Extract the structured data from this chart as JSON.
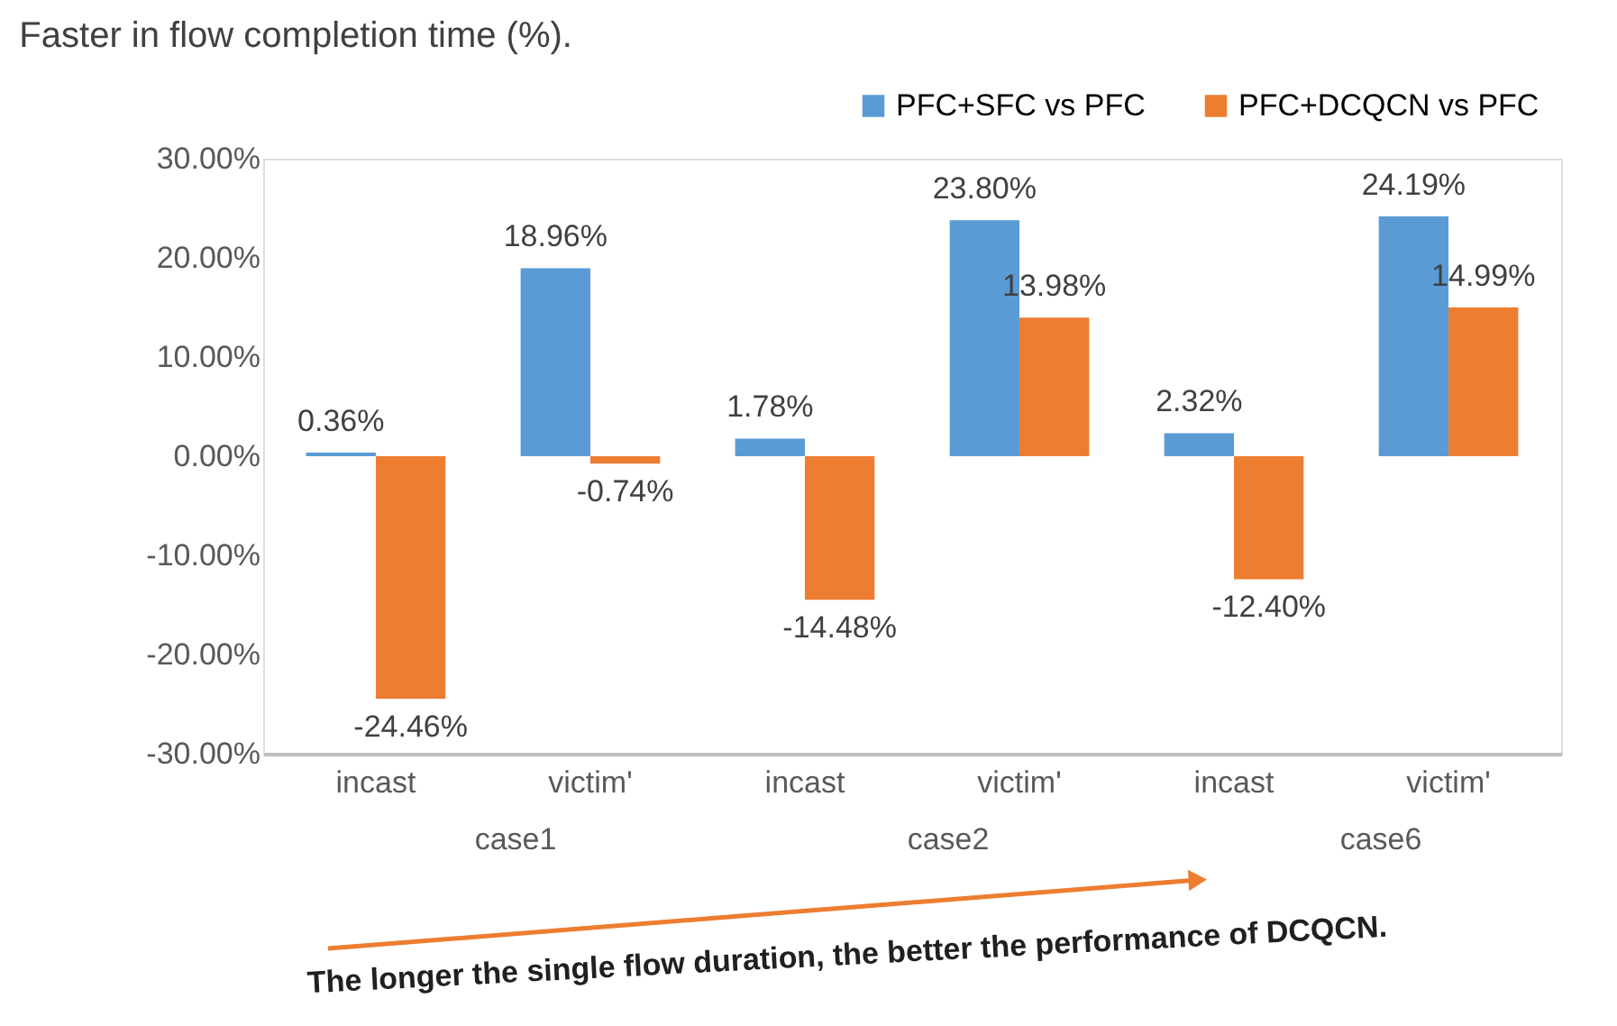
{
  "chart_data": {
    "type": "bar",
    "title": "Faster in flow completion time (%).",
    "categories": [
      "incast",
      "victim'",
      "incast",
      "victim'",
      "incast",
      "victim'"
    ],
    "series": [
      {
        "name": "PFC+SFC vs PFC",
        "color": "#5b9bd5",
        "values": [
          0.36,
          18.96,
          1.78,
          23.8,
          2.32,
          24.19
        ],
        "value_labels": [
          "0.36%",
          "18.96%",
          "1.78%",
          "23.80%",
          "2.32%",
          "24.19%"
        ]
      },
      {
        "name": "PFC+DCQCN vs PFC",
        "color": "#ed7d31",
        "values": [
          -24.46,
          -0.74,
          -14.48,
          13.98,
          -12.4,
          14.99
        ],
        "value_labels": [
          "-24.46%",
          "-0.74%",
          "-14.48%",
          "13.98%",
          "-12.40%",
          "14.99%"
        ]
      }
    ],
    "ylim": [
      -30,
      30
    ],
    "yticks": [
      {
        "value": -30,
        "label": "-30.00%"
      },
      {
        "value": -20,
        "label": "-20.00%"
      },
      {
        "value": -10,
        "label": "-10.00%"
      },
      {
        "value": 0,
        "label": "0.00%"
      },
      {
        "value": 10,
        "label": "10.00%"
      },
      {
        "value": 20,
        "label": "20.00%"
      },
      {
        "value": 30,
        "label": "30.00%"
      }
    ],
    "grid": false,
    "legend": "top",
    "annotations": [
      "case1",
      "case2",
      "case6",
      "The longer the single flow duration, the better the performance of DCQCN."
    ]
  }
}
